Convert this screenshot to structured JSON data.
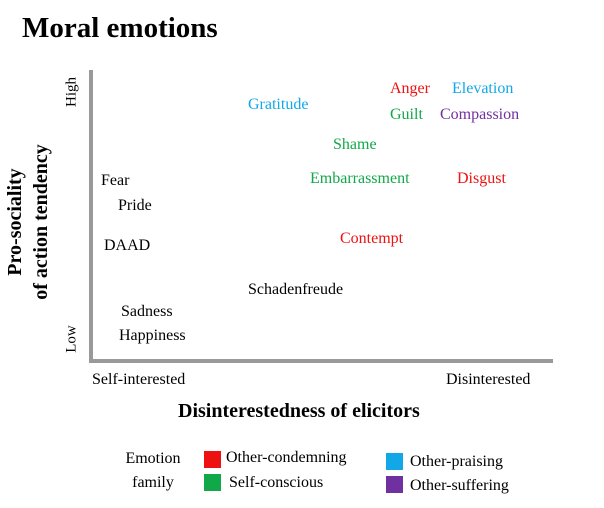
{
  "title": "Moral emotions",
  "axes": {
    "y_label_line1": "Pro-sociality",
    "y_label_line2": "of action tendency",
    "y_high": "High",
    "y_low": "Low",
    "x_left": "Self-interested",
    "x_right": "Disinterested",
    "x_label": "Disinterestedness of elicitors"
  },
  "families": {
    "condemning": {
      "label": "Other-condemning",
      "color": "#ee1111"
    },
    "conscious": {
      "label": "Self-conscious",
      "color": "#11a84a"
    },
    "praising": {
      "label": "Other-praising",
      "color": "#12a8e8"
    },
    "suffering": {
      "label": "Other-suffering",
      "color": "#7030a0"
    },
    "neutral": {
      "color": "#000000"
    }
  },
  "emotions": [
    {
      "label": "Anger",
      "family": "condemning"
    },
    {
      "label": "Elevation",
      "family": "praising"
    },
    {
      "label": "Gratitude",
      "family": "praising"
    },
    {
      "label": "Guilt",
      "family": "conscious"
    },
    {
      "label": "Compassion",
      "family": "suffering"
    },
    {
      "label": "Shame",
      "family": "conscious"
    },
    {
      "label": "Fear",
      "family": "neutral"
    },
    {
      "label": "Embarrassment",
      "family": "conscious"
    },
    {
      "label": "Disgust",
      "family": "condemning"
    },
    {
      "label": "Pride",
      "family": "neutral"
    },
    {
      "label": "DAAD",
      "family": "neutral"
    },
    {
      "label": "Contempt",
      "family": "condemning"
    },
    {
      "label": "Schadenfreude",
      "family": "neutral"
    },
    {
      "label": "Sadness",
      "family": "neutral"
    },
    {
      "label": "Happiness",
      "family": "neutral"
    }
  ],
  "legend": {
    "title_line1": "Emotion",
    "title_line2": "family"
  }
}
